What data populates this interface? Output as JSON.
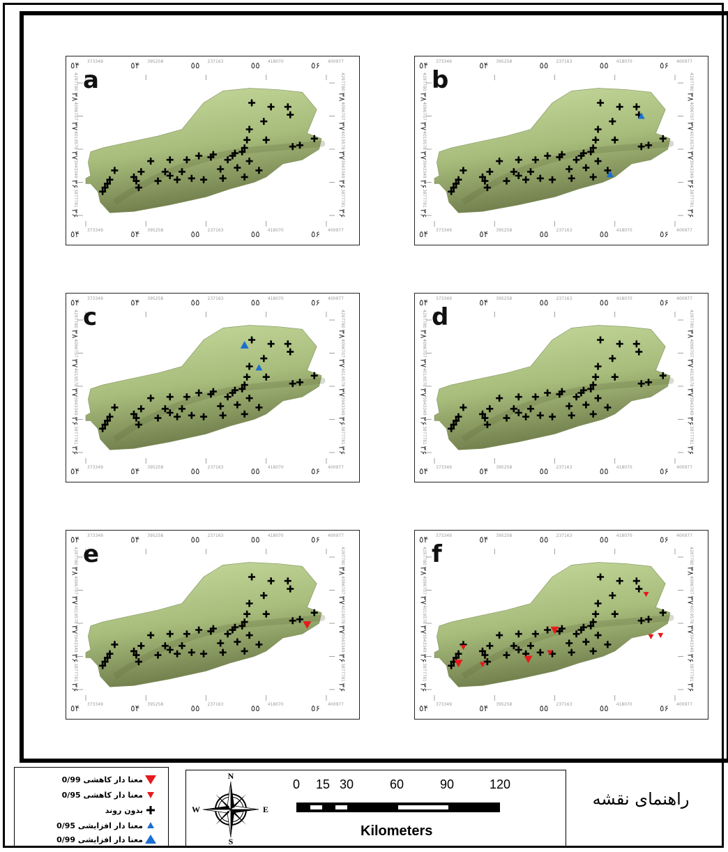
{
  "panels": [
    {
      "letter": "a",
      "blue_big": [],
      "blue_small": [],
      "red_big": [],
      "red_small": []
    },
    {
      "letter": "b",
      "blue_big": [],
      "blue_small": [
        [
          0.86,
          0.25
        ],
        [
          0.73,
          0.69
        ]
      ],
      "red_big": [],
      "red_small": []
    },
    {
      "letter": "c",
      "blue_big": [
        [
          0.66,
          0.19
        ]
      ],
      "blue_small": [
        [
          0.72,
          0.36
        ]
      ],
      "red_big": [],
      "red_small": []
    },
    {
      "letter": "d",
      "blue_big": [],
      "blue_small": [],
      "red_big": [],
      "red_small": []
    },
    {
      "letter": "e",
      "blue_big": [],
      "blue_small": [],
      "red_big": [
        [
          0.92,
          0.51
        ]
      ],
      "red_small": []
    },
    {
      "letter": "f",
      "blue_big": [],
      "blue_small": [],
      "red_big": [
        [
          0.1,
          0.8
        ],
        [
          0.39,
          0.77
        ],
        [
          0.5,
          0.55
        ]
      ],
      "red_small": [
        [
          0.12,
          0.68
        ],
        [
          0.2,
          0.81
        ],
        [
          0.48,
          0.72
        ],
        [
          0.88,
          0.28
        ],
        [
          0.9,
          0.6
        ],
        [
          0.94,
          0.59
        ]
      ]
    }
  ],
  "stations": [
    [
      0.07,
      0.82
    ],
    [
      0.08,
      0.79
    ],
    [
      0.09,
      0.76
    ],
    [
      0.1,
      0.73
    ],
    [
      0.12,
      0.66
    ],
    [
      0.2,
      0.71
    ],
    [
      0.21,
      0.74
    ],
    [
      0.22,
      0.79
    ],
    [
      0.23,
      0.67
    ],
    [
      0.27,
      0.59
    ],
    [
      0.3,
      0.74
    ],
    [
      0.33,
      0.67
    ],
    [
      0.35,
      0.58
    ],
    [
      0.35,
      0.7
    ],
    [
      0.38,
      0.73
    ],
    [
      0.4,
      0.67
    ],
    [
      0.42,
      0.58
    ],
    [
      0.44,
      0.72
    ],
    [
      0.47,
      0.55
    ],
    [
      0.49,
      0.73
    ],
    [
      0.52,
      0.56
    ],
    [
      0.53,
      0.54
    ],
    [
      0.56,
      0.65
    ],
    [
      0.57,
      0.72
    ],
    [
      0.59,
      0.58
    ],
    [
      0.61,
      0.55
    ],
    [
      0.62,
      0.53
    ],
    [
      0.63,
      0.64
    ],
    [
      0.65,
      0.52
    ],
    [
      0.66,
      0.49
    ],
    [
      0.66,
      0.71
    ],
    [
      0.67,
      0.43
    ],
    [
      0.68,
      0.35
    ],
    [
      0.68,
      0.59
    ],
    [
      0.69,
      0.15
    ],
    [
      0.72,
      0.66
    ],
    [
      0.74,
      0.29
    ],
    [
      0.75,
      0.43
    ],
    [
      0.77,
      0.18
    ],
    [
      0.84,
      0.18
    ],
    [
      0.85,
      0.24
    ],
    [
      0.86,
      0.48
    ],
    [
      0.89,
      0.47
    ],
    [
      0.95,
      0.42
    ]
  ],
  "ticks": {
    "top": [
      "٥۴",
      "٥۴",
      "٥٥",
      "٥٥",
      "٥۶"
    ],
    "top_small": [
      "373349",
      "395258",
      "237163",
      "418070",
      "400977"
    ],
    "left": [
      "۳۸",
      "۳۷",
      "۳۷",
      "۳۶",
      "۳۶"
    ],
    "left_small": [
      "4297780",
      "4096707",
      "4019578",
      "3943349",
      "3877781"
    ]
  },
  "legend": {
    "items": [
      {
        "label": "معنا دار کاهشی 0/99",
        "symbol": "red-triangle-big"
      },
      {
        "label": "معنا دار کاهشی 0/95",
        "symbol": "red-triangle-small"
      },
      {
        "label": "بدون روند",
        "symbol": "plus"
      },
      {
        "label": "معنا دار افزایشی 0/95",
        "symbol": "blue-triangle-small"
      },
      {
        "label": "معنا دار افزایشی 0/99",
        "symbol": "blue-triangle-big"
      }
    ],
    "title": "راهنمای نقشه"
  },
  "scale_bar": {
    "numbers": [
      "0",
      "15",
      "30",
      "60",
      "90",
      "120"
    ],
    "unit": "Kilometers"
  },
  "compass": {
    "n": "N",
    "s": "S",
    "e": "E",
    "w": "W"
  },
  "colors": {
    "terrain_light": "#c8dca0",
    "terrain_dark": "#6e7b4a",
    "red": "#e41a1c",
    "blue": "#1a6fd1"
  }
}
